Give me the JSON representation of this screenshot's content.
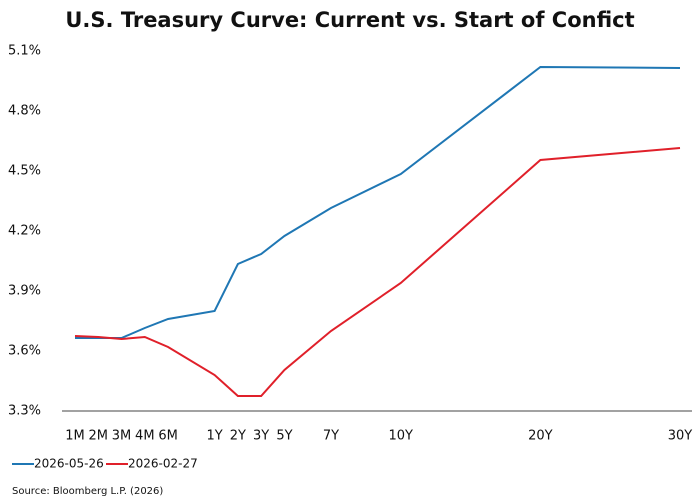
{
  "chart_data": {
    "type": "line",
    "title": "U.S. Treasury Curve: Current vs. Start of Confict",
    "source": "Source: Bloomberg L.P. (2026)",
    "categories": [
      "1M",
      "2M",
      "3M",
      "4M",
      "6M",
      "1Y",
      "2Y",
      "3Y",
      "5Y",
      "7Y",
      "10Y",
      "20Y",
      "30Y"
    ],
    "series": [
      {
        "name": "2026-05-26",
        "color": "#1f77b4",
        "values": [
          3.665,
          3.665,
          3.665,
          3.715,
          3.76,
          3.8,
          4.035,
          4.085,
          4.175,
          4.315,
          4.485,
          5.02,
          5.015
        ]
      },
      {
        "name": "2026-02-27",
        "color": "#e0202a",
        "values": [
          3.675,
          3.67,
          3.66,
          3.67,
          3.62,
          3.48,
          3.375,
          3.375,
          3.505,
          3.7,
          3.94,
          4.555,
          4.615
        ]
      }
    ],
    "ylim": [
      3.3,
      5.1
    ],
    "yticks": [
      {
        "value": 3.3,
        "label": "3.3%"
      },
      {
        "value": 3.6,
        "label": "3.6%"
      },
      {
        "value": 3.9,
        "label": "3.9%"
      },
      {
        "value": 4.2,
        "label": "4.2%"
      },
      {
        "value": 4.5,
        "label": "4.5%"
      },
      {
        "value": 4.8,
        "label": "4.8%"
      },
      {
        "value": 5.1,
        "label": "5.1%"
      }
    ],
    "legend": "bottom-left",
    "grid": false
  }
}
